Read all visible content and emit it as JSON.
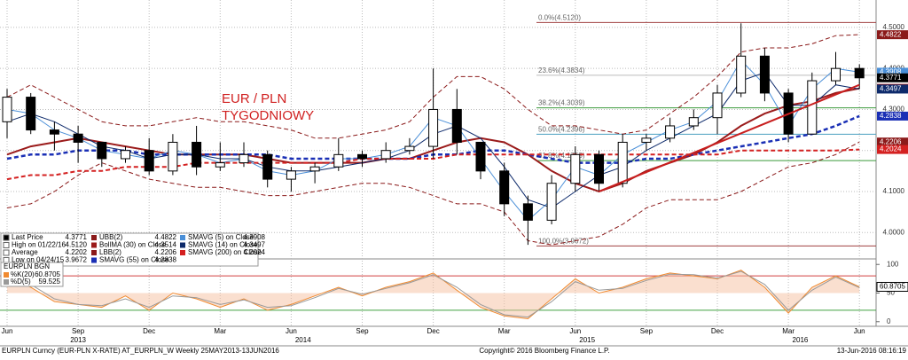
{
  "chart_data": [
    {
      "type": "candlestick",
      "annotation": "EUR / PLN\nTYGODNIOWY",
      "categories": [
        "Jun",
        null,
        null,
        "Sep",
        null,
        null,
        "Dec",
        null,
        null,
        "Mar",
        null,
        null,
        "Jun",
        null,
        null,
        "Sep",
        null,
        null,
        "Dec",
        null,
        null,
        "Mar",
        null,
        null,
        "Jun",
        null,
        null,
        "Sep",
        null,
        null,
        "Dec",
        null,
        null,
        "Mar",
        null,
        null,
        "Jun"
      ],
      "year_ticks": [
        {
          "value": 3,
          "label": "2013"
        },
        {
          "value": 12.5,
          "label": "2014"
        },
        {
          "value": 24.5,
          "label": "2015"
        },
        {
          "value": 33.5,
          "label": "2016"
        }
      ],
      "open": [
        4.27,
        4.33,
        4.25,
        4.24,
        4.22,
        4.18,
        4.2,
        4.15,
        4.22,
        4.16,
        4.17,
        4.19,
        4.13,
        4.15,
        4.16,
        4.19,
        4.18,
        4.2,
        4.21,
        4.3,
        4.22,
        4.15,
        4.07,
        4.03,
        4.12,
        4.19,
        4.12,
        4.22,
        4.23,
        4.26,
        4.28,
        4.34,
        4.43,
        4.34,
        4.24,
        4.37,
        4.4
      ],
      "high": [
        4.35,
        4.34,
        4.27,
        4.26,
        4.22,
        4.21,
        4.23,
        4.24,
        4.26,
        4.22,
        4.22,
        4.2,
        4.16,
        4.17,
        4.23,
        4.2,
        4.22,
        4.23,
        4.4,
        4.35,
        4.22,
        4.17,
        4.09,
        4.14,
        4.21,
        4.2,
        4.24,
        4.24,
        4.28,
        4.3,
        4.36,
        4.51,
        4.45,
        4.35,
        4.39,
        4.44,
        4.41
      ],
      "low": [
        4.23,
        4.24,
        4.2,
        4.17,
        4.16,
        4.17,
        4.14,
        4.14,
        4.14,
        4.15,
        4.16,
        4.11,
        4.1,
        4.12,
        4.15,
        4.16,
        4.17,
        4.19,
        4.18,
        4.19,
        4.13,
        4.04,
        3.97,
        4.02,
        4.1,
        4.1,
        4.11,
        4.2,
        4.22,
        4.25,
        4.24,
        4.33,
        4.32,
        4.22,
        4.24,
        4.36,
        4.35
      ],
      "close": [
        4.33,
        4.25,
        4.24,
        4.22,
        4.18,
        4.2,
        4.15,
        4.22,
        4.16,
        4.17,
        4.19,
        4.13,
        4.15,
        4.16,
        4.19,
        4.18,
        4.2,
        4.21,
        4.3,
        4.22,
        4.15,
        4.07,
        4.03,
        4.12,
        4.19,
        4.12,
        4.22,
        4.23,
        4.26,
        4.28,
        4.34,
        4.43,
        4.34,
        4.24,
        4.37,
        4.4,
        4.3771
      ],
      "ylim": [
        3.94,
        4.556
      ],
      "yticks": [
        {
          "value": 4.0,
          "label": "4.0000"
        },
        {
          "value": 4.1,
          "label": "4.1000"
        },
        {
          "value": 4.2,
          "label": "4.2000"
        },
        {
          "value": 4.3,
          "label": "4.3000"
        },
        {
          "value": 4.4,
          "label": "4.4000"
        },
        {
          "value": 4.5,
          "label": "4.5000"
        }
      ],
      "grid": true,
      "stats": [
        {
          "name": "Last Price"
        },
        {
          "name": "High on 01/22/16",
          "value": 4.512,
          "value_label": "4.5120"
        },
        {
          "name": "Average",
          "value": 4.2202
        },
        {
          "name": "Low on 04/24/15",
          "value": 3.9672
        }
      ],
      "series": [
        {
          "name": "UBB(2)",
          "color": "#8b1a1a",
          "style": "dashed",
          "width": 1,
          "values": [
            4.33,
            4.36,
            4.33,
            4.3,
            4.27,
            4.26,
            4.26,
            4.27,
            4.28,
            4.27,
            4.27,
            4.26,
            4.25,
            4.23,
            4.23,
            4.24,
            4.25,
            4.27,
            4.33,
            4.38,
            4.38,
            4.35,
            4.3,
            4.26,
            4.26,
            4.25,
            4.24,
            4.25,
            4.29,
            4.33,
            4.38,
            4.44,
            4.45,
            4.45,
            4.46,
            4.48,
            4.4822
          ]
        },
        {
          "name": "BollMA (30) on Close",
          "color": "#9b1b1b",
          "style": "solid",
          "width": 2,
          "values": [
            4.19,
            4.21,
            4.22,
            4.23,
            4.22,
            4.21,
            4.2,
            4.19,
            4.19,
            4.19,
            4.19,
            4.18,
            4.17,
            4.17,
            4.17,
            4.17,
            4.18,
            4.18,
            4.2,
            4.22,
            4.23,
            4.22,
            4.19,
            4.15,
            4.12,
            4.1,
            4.12,
            4.15,
            4.17,
            4.19,
            4.22,
            4.26,
            4.29,
            4.31,
            4.32,
            4.34,
            4.3514
          ]
        },
        {
          "name": "LBB(2)",
          "color": "#8b1a1a",
          "style": "dashed",
          "width": 1,
          "values": [
            4.06,
            4.07,
            4.1,
            4.14,
            4.17,
            4.15,
            4.13,
            4.12,
            4.11,
            4.11,
            4.1,
            4.09,
            4.09,
            4.1,
            4.11,
            4.12,
            4.12,
            4.11,
            4.09,
            4.07,
            4.07,
            4.05,
            3.98,
            3.97,
            3.98,
            3.99,
            4.02,
            4.06,
            4.08,
            4.08,
            4.08,
            4.1,
            4.13,
            4.16,
            4.17,
            4.19,
            4.2206
          ]
        },
        {
          "name": "SMAVG (55) on Close",
          "color": "#1a2fb5",
          "style": "dashed",
          "width": 2.5,
          "values": [
            4.18,
            4.19,
            4.19,
            4.2,
            4.2,
            4.2,
            4.19,
            4.19,
            4.19,
            4.19,
            4.19,
            4.19,
            4.18,
            4.18,
            4.18,
            4.18,
            4.18,
            4.18,
            4.19,
            4.19,
            4.2,
            4.2,
            4.19,
            4.18,
            4.17,
            4.17,
            4.17,
            4.18,
            4.18,
            4.19,
            4.2,
            4.21,
            4.22,
            4.23,
            4.24,
            4.26,
            4.2838
          ]
        },
        {
          "name": "SMAVG (5) on Close",
          "color": "#4a8fd8",
          "style": "solid",
          "width": 1,
          "values": [
            4.3,
            4.29,
            4.25,
            4.23,
            4.2,
            4.19,
            4.18,
            4.2,
            4.19,
            4.17,
            4.18,
            4.15,
            4.14,
            4.15,
            4.18,
            4.18,
            4.19,
            4.21,
            4.28,
            4.26,
            4.18,
            4.1,
            4.03,
            4.08,
            4.16,
            4.14,
            4.19,
            4.22,
            4.25,
            4.27,
            4.32,
            4.42,
            4.36,
            4.26,
            4.35,
            4.4,
            4.3908
          ]
        },
        {
          "name": "SMAVG (14) on Close",
          "color": "#0d2a6b",
          "style": "solid",
          "width": 1,
          "values": [
            4.27,
            4.29,
            4.27,
            4.24,
            4.21,
            4.2,
            4.18,
            4.19,
            4.19,
            4.18,
            4.18,
            4.16,
            4.15,
            4.15,
            4.16,
            4.17,
            4.18,
            4.2,
            4.24,
            4.26,
            4.23,
            4.16,
            4.08,
            4.06,
            4.1,
            4.14,
            4.16,
            4.2,
            4.23,
            4.26,
            4.29,
            4.37,
            4.39,
            4.31,
            4.31,
            4.36,
            4.3497
          ]
        },
        {
          "name": "SMAVG (200) on Close",
          "color": "#d42020",
          "style": "dashed",
          "width": 2,
          "values": [
            4.13,
            4.14,
            4.14,
            4.15,
            4.15,
            4.16,
            4.16,
            4.16,
            4.17,
            4.17,
            4.17,
            4.17,
            4.17,
            4.17,
            4.17,
            4.18,
            4.18,
            4.18,
            4.18,
            4.19,
            4.19,
            4.19,
            4.19,
            4.19,
            4.19,
            4.19,
            4.19,
            4.19,
            4.19,
            4.19,
            4.19,
            4.2,
            4.2,
            4.2,
            4.2,
            4.2,
            4.2024
          ]
        }
      ],
      "fib_levels": [
        {
          "label": "0.0%(4.5120)",
          "value": 4.512,
          "color": "#a04040"
        },
        {
          "label": "23.6%(4.3834)",
          "value": 4.3834,
          "color": "#bbbbbb"
        },
        {
          "label": "38.2%(4.3039)",
          "value": 4.3039,
          "color": "#3a9a3a"
        },
        {
          "label": "50.0%(4.2396)",
          "value": 4.2396,
          "color": "#4aa0c0"
        },
        {
          "label": "61.8%(4.1753)",
          "value": 4.1753,
          "color": "#3a9a3a"
        },
        {
          "label": "100.0%(3.9672)",
          "value": 3.9672,
          "color": "#a04040"
        }
      ],
      "trendline": {
        "color": "#c81e1e",
        "x": [
          25,
          36
        ],
        "y": [
          4.1,
          4.36
        ]
      }
    },
    {
      "type": "line",
      "title": "EURPLN BGN",
      "ylim": [
        -5,
        105
      ],
      "yticks": [
        0,
        50,
        100
      ],
      "ref_lines": [
        {
          "value": 80,
          "color": "#d04040"
        },
        {
          "value": 20,
          "color": "#40a040"
        }
      ],
      "series": [
        {
          "name": "%K(20)",
          "color": "#f08a30",
          "values": [
            80,
            60,
            35,
            30,
            25,
            45,
            20,
            50,
            40,
            25,
            40,
            20,
            30,
            45,
            60,
            45,
            60,
            70,
            85,
            55,
            25,
            10,
            5,
            40,
            75,
            50,
            60,
            75,
            85,
            80,
            75,
            90,
            60,
            15,
            60,
            80,
            60.8705
          ]
        },
        {
          "name": "%D(5)",
          "color": "#999999",
          "values": [
            78,
            65,
            40,
            30,
            28,
            40,
            25,
            45,
            42,
            30,
            38,
            25,
            28,
            42,
            58,
            48,
            58,
            68,
            82,
            60,
            30,
            12,
            8,
            35,
            70,
            55,
            58,
            72,
            83,
            82,
            76,
            88,
            65,
            20,
            55,
            78,
            59.525
          ]
        }
      ]
    }
  ],
  "footer": {
    "left": "EURPLN Curncy (EUR-PLN X-RATE) AT_EURPLN_W  Weekly 25MAY2013-13JUN2016",
    "center": "Copyright© 2016 Bloomberg Finance L.P.",
    "right": "13-Jun-2016 08:16:19"
  }
}
